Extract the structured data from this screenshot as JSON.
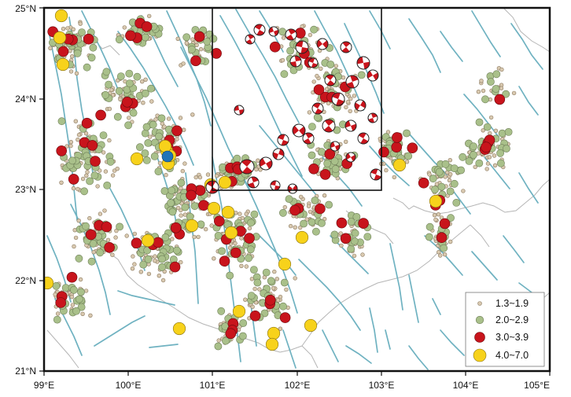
{
  "map": {
    "x_ticks": [
      "99°E",
      "100°E",
      "101°E",
      "102°E",
      "103°E",
      "104°E",
      "105°E"
    ],
    "y_ticks": [
      "21°N",
      "22°N",
      "23°N",
      "24°N",
      "25°N"
    ],
    "lon_range": [
      99,
      105
    ],
    "lat_range": [
      21,
      25
    ],
    "study_box": {
      "lon": [
        101,
        103
      ],
      "lat": [
        23,
        25
      ]
    }
  },
  "legend": {
    "placement": "bottom-right",
    "items": [
      {
        "label": "1.3~1.9",
        "color": "#d9c9b0"
      },
      {
        "label": "2.0~2.9",
        "color": "#a9c08a"
      },
      {
        "label": "3.0~3.9",
        "color": "#c8141c"
      },
      {
        "label": "4.0~7.0",
        "color": "#f7d21b"
      }
    ]
  },
  "colors": {
    "fault": "#6fb2c1",
    "border": "#b5b5b5",
    "micro_quake": "#d9c9b0",
    "small_quake": "#a9c08a",
    "moderate_quake": "#c8141c",
    "large_quake": "#f7d21b",
    "highlight_event": "#1f74b8"
  }
}
